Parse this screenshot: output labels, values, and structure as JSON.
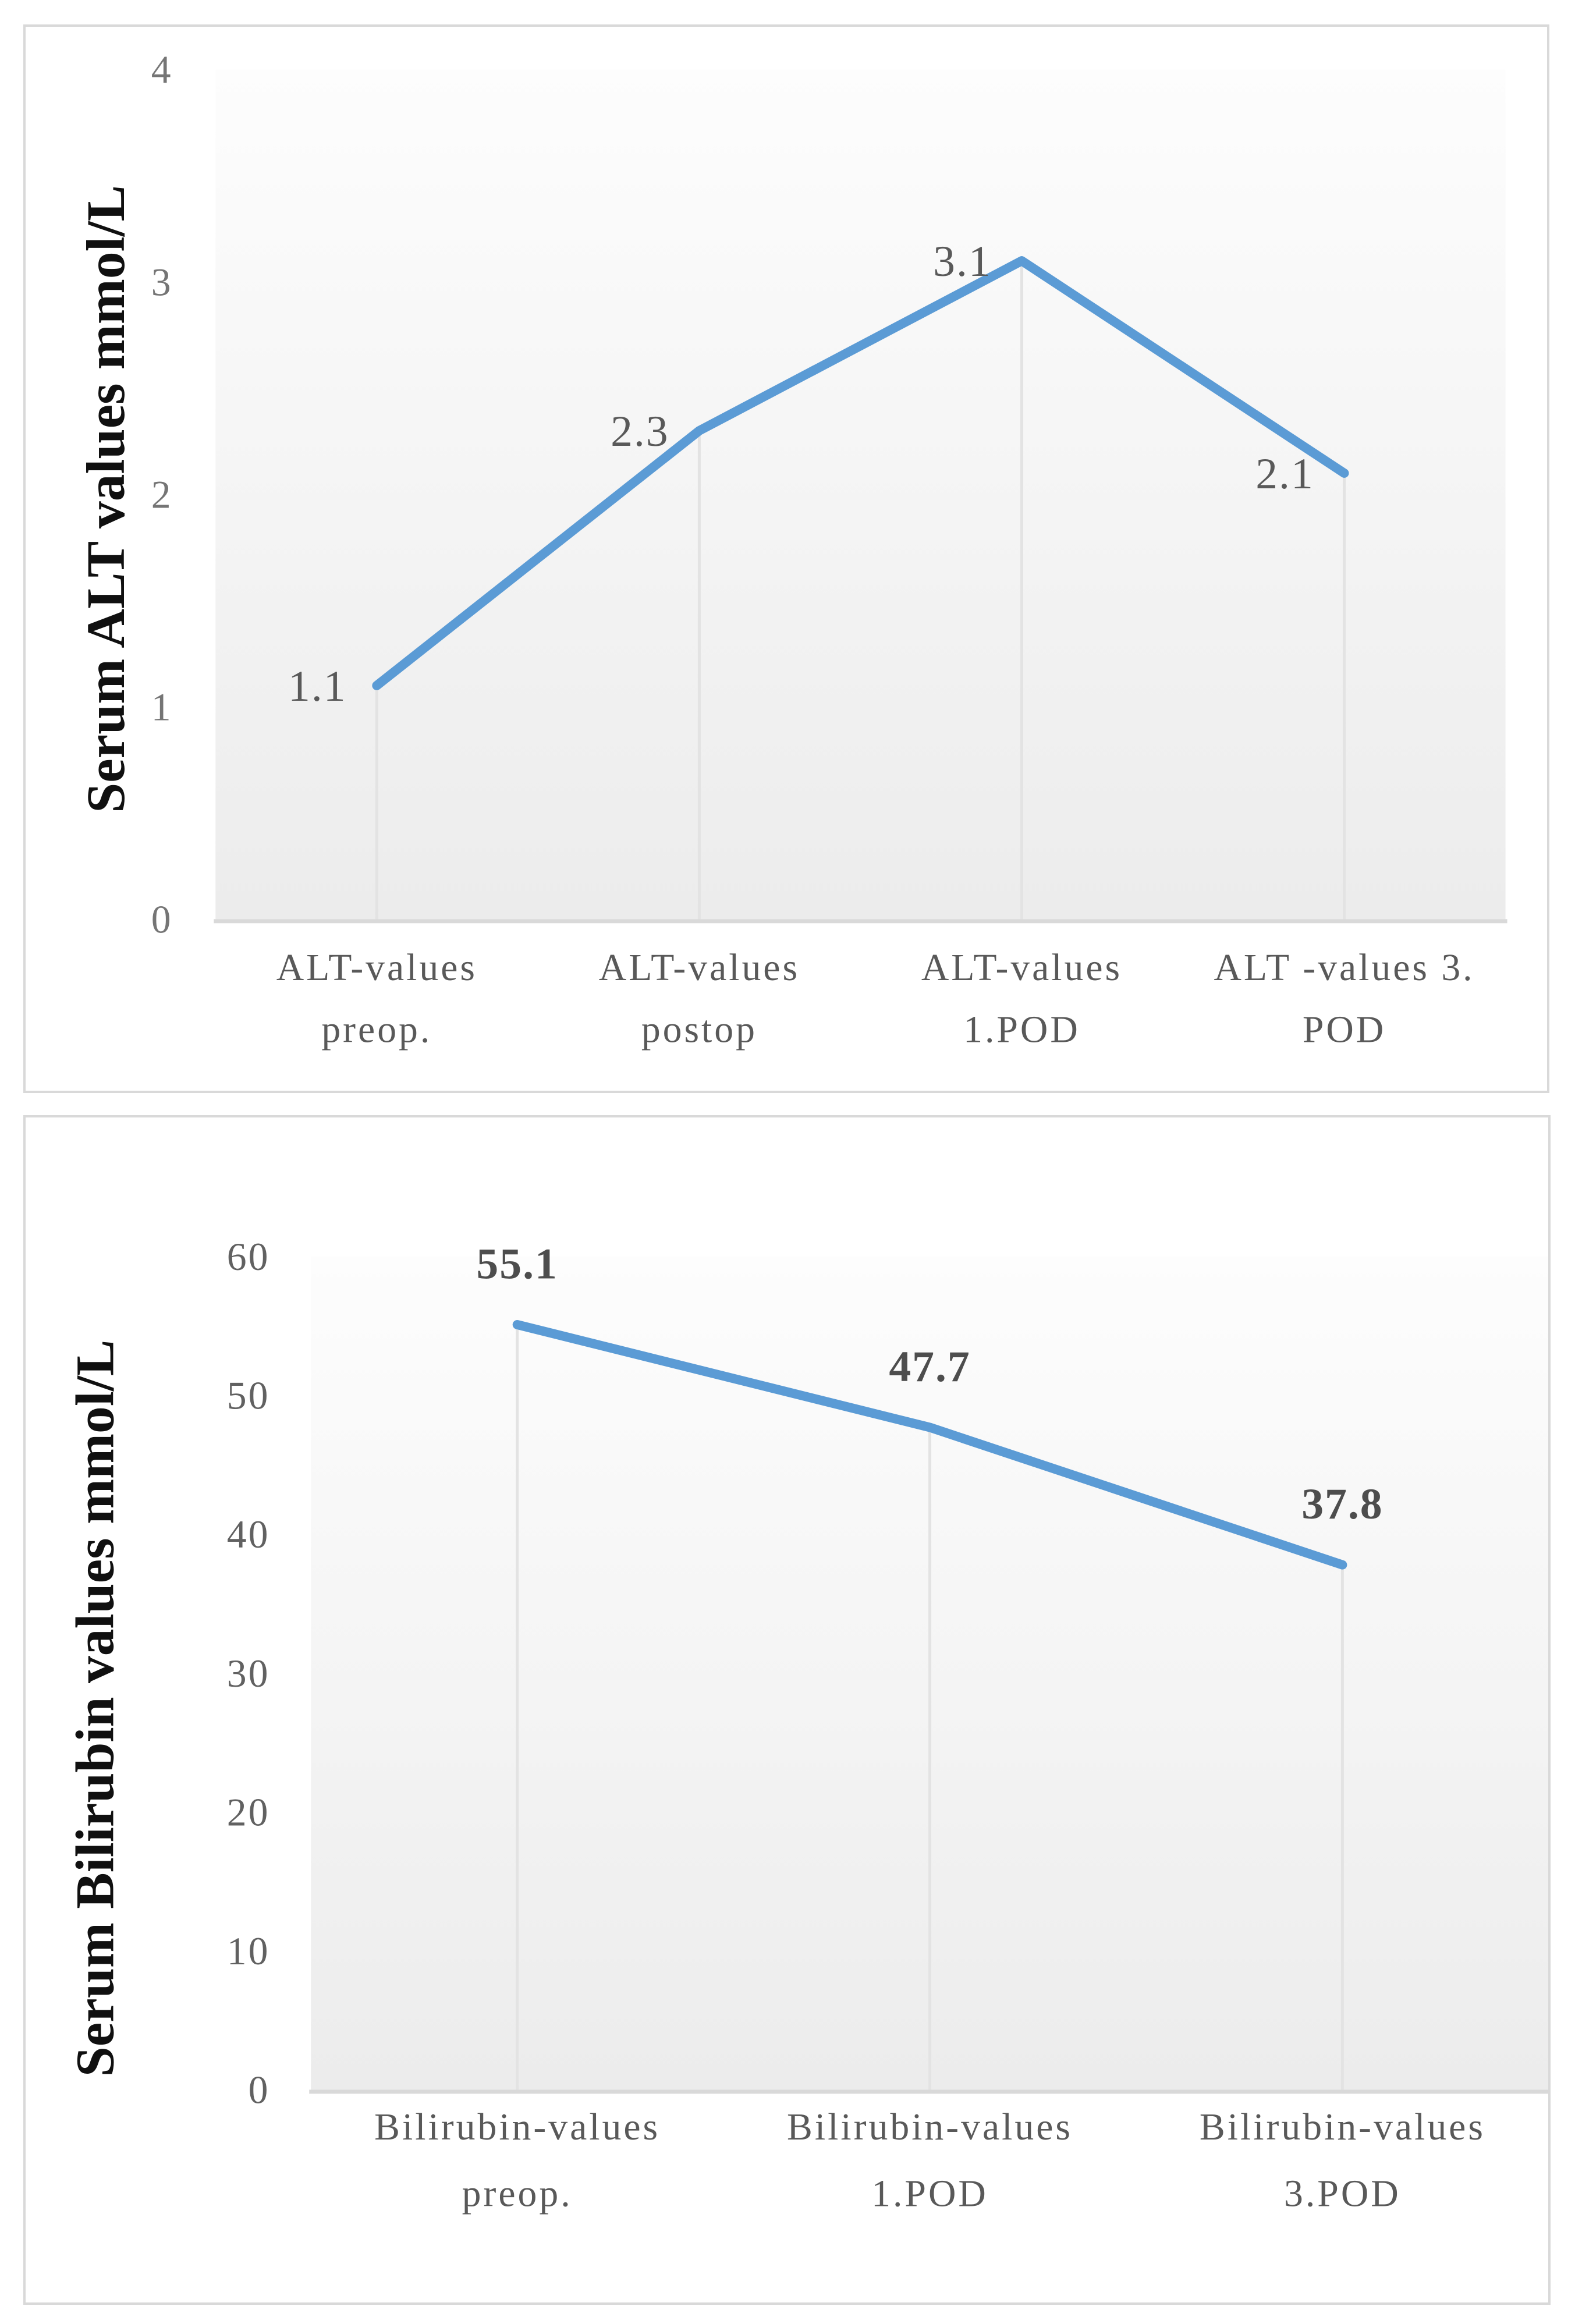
{
  "page": {
    "background": "#ffffff",
    "panel_border_color": "#d9d9d9"
  },
  "chart_data": [
    {
      "type": "line",
      "name": "serum-alt-chart",
      "title": "",
      "xlabel": "",
      "ylabel": "Serum ALT values mmol/L",
      "categories": [
        "ALT-values\npreop.",
        "ALT-values\npostop",
        "ALT-values\n1.POD",
        "ALT -values 3.\nPOD"
      ],
      "series": [
        {
          "name": "Serum ALT",
          "values": [
            1.1,
            2.3,
            3.1,
            2.1
          ]
        }
      ],
      "data_labels": [
        "1.1",
        "2.3",
        "3.1",
        "2.1"
      ],
      "data_label_position": "left",
      "data_label_bold": false,
      "ylim": [
        0,
        4
      ],
      "yticks": [
        4,
        3,
        2,
        1,
        0
      ],
      "grid": false,
      "legend": "none",
      "drop_lines": true,
      "line_color": "#5b9bd5",
      "drop_line_color": "#e3e3e3",
      "axis_line_color": "#d9d9d9",
      "tick_color": "#757575",
      "category_color": "#595959",
      "data_label_color": "#595959",
      "ylabel_color": "#101010",
      "plot_bg_top": "#fdfdfd",
      "plot_bg_bottom": "#ececec"
    },
    {
      "type": "line",
      "name": "serum-bilirubin-chart",
      "title": "",
      "xlabel": "",
      "ylabel": "Serum Bilirubin values mmol/L",
      "categories": [
        "Bilirubin-values\npreop.",
        "Bilirubin-values\n1.POD",
        "Bilirubin-values\n3.POD"
      ],
      "series": [
        {
          "name": "Serum Bilirubin",
          "values": [
            55.1,
            47.7,
            37.8
          ]
        }
      ],
      "data_labels": [
        "55.1",
        "47.7",
        "37.8"
      ],
      "data_label_position": "above",
      "data_label_bold": true,
      "ylim": [
        0,
        60
      ],
      "yticks": [
        60,
        50,
        40,
        30,
        20,
        10,
        0
      ],
      "grid": false,
      "legend": "none",
      "drop_lines": true,
      "line_color": "#5b9bd5",
      "drop_line_color": "#e3e3e3",
      "axis_line_color": "#d9d9d9",
      "tick_color": "#616161",
      "category_color": "#595959",
      "data_label_color": "#4d4d4d",
      "ylabel_color": "#101010",
      "plot_bg_top": "#fdfdfd",
      "plot_bg_bottom": "#ececec"
    }
  ]
}
